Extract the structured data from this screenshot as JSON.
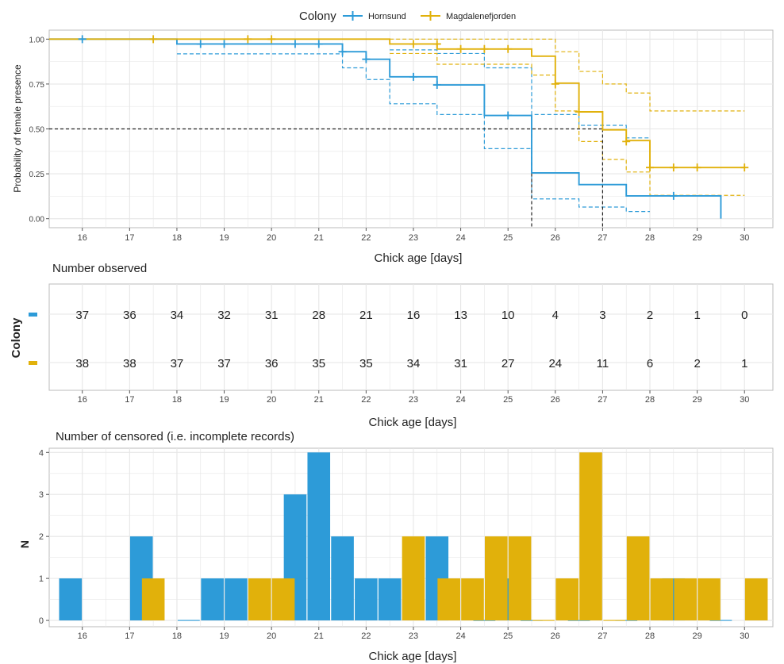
{
  "colors": {
    "hornsund": "#2D9BD8",
    "magdalenefjorden": "#E1B10B",
    "grid": "#E6E6E6",
    "axis": "#555555"
  },
  "legend": {
    "title": "Colony",
    "items": [
      "Hornsund",
      "Magdalenefjorden"
    ]
  },
  "panel1": {
    "ylabel": "Probability of female presence",
    "xlabel": "Chick age [days]"
  },
  "panel2": {
    "title": "Number observed",
    "ylabel": "Colony",
    "xlabel": "Chick age [days]"
  },
  "panel3": {
    "title": "Number of censored (i.e. incomplete records)",
    "ylabel": "N",
    "xlabel": "Chick age [days]"
  },
  "chart_data": [
    {
      "type": "line",
      "subtype": "kaplan-meier step curve with 95% confidence bands",
      "xlabel": "Chick age [days]",
      "ylabel": "Probability of female presence",
      "xlim": [
        15.3,
        30.6
      ],
      "ylim": [
        -0.05,
        1.05
      ],
      "x_ticks": [
        16,
        17,
        18,
        19,
        20,
        21,
        22,
        23,
        24,
        25,
        26,
        27,
        28,
        29,
        30
      ],
      "y_ticks": [
        "0.00",
        "0.25",
        "0.50",
        "0.75",
        "1.00"
      ],
      "grid": true,
      "legend_position": "top",
      "reference_lines": {
        "y": 0.5,
        "median_x": [
          25.5,
          27.0
        ]
      },
      "series": [
        {
          "name": "Hornsund",
          "steps": [
            [
              15.3,
              1.0
            ],
            [
              18.0,
              0.973
            ],
            [
              21.5,
              0.93
            ],
            [
              22.0,
              0.888
            ],
            [
              22.5,
              0.79
            ],
            [
              23.5,
              0.745
            ],
            [
              24.5,
              0.575
            ],
            [
              25.5,
              0.255
            ],
            [
              26.5,
              0.19
            ],
            [
              27.5,
              0.127
            ],
            [
              29.5,
              0.0
            ]
          ],
          "lower_band": [
            [
              18.0,
              0.918
            ],
            [
              21.5,
              0.84
            ],
            [
              22.0,
              0.775
            ],
            [
              22.5,
              0.64
            ],
            [
              23.5,
              0.58
            ],
            [
              24.5,
              0.39
            ],
            [
              25.5,
              0.11
            ],
            [
              26.5,
              0.065
            ],
            [
              27.5,
              0.04
            ],
            [
              28.0,
              0.04
            ]
          ],
          "upper_band": [
            [
              22.5,
              0.94
            ],
            [
              23.5,
              0.92
            ],
            [
              24.5,
              0.84
            ],
            [
              25.5,
              0.58
            ],
            [
              26.5,
              0.52
            ],
            [
              27.5,
              0.45
            ],
            [
              28.0,
              0.45
            ]
          ],
          "censor_marks": [
            [
              16.0,
              1.0
            ],
            [
              18.5,
              0.973
            ],
            [
              19.0,
              0.973
            ],
            [
              20.5,
              0.973
            ],
            [
              21.0,
              0.973
            ],
            [
              21.5,
              0.93
            ],
            [
              22.0,
              0.888
            ],
            [
              23.0,
              0.79
            ],
            [
              23.5,
              0.745
            ],
            [
              25.0,
              0.575
            ],
            [
              28.5,
              0.127
            ]
          ]
        },
        {
          "name": "Magdalenefjorden",
          "steps": [
            [
              15.3,
              1.0
            ],
            [
              22.5,
              0.973
            ],
            [
              23.5,
              0.945
            ],
            [
              25.5,
              0.905
            ],
            [
              26.0,
              0.755
            ],
            [
              26.5,
              0.595
            ],
            [
              27.0,
              0.495
            ],
            [
              27.5,
              0.435
            ],
            [
              28.0,
              0.285
            ],
            [
              30.0,
              0.285
            ]
          ],
          "lower_band": [
            [
              22.5,
              0.92
            ],
            [
              23.5,
              0.86
            ],
            [
              25.5,
              0.8
            ],
            [
              26.0,
              0.6
            ],
            [
              26.5,
              0.43
            ],
            [
              27.0,
              0.33
            ],
            [
              27.5,
              0.26
            ],
            [
              28.0,
              0.13
            ],
            [
              30.0,
              0.13
            ]
          ],
          "upper_band": [
            [
              22.5,
              1.0
            ],
            [
              25.5,
              1.0
            ],
            [
              26.0,
              0.93
            ],
            [
              26.5,
              0.82
            ],
            [
              27.0,
              0.75
            ],
            [
              27.5,
              0.7
            ],
            [
              28.0,
              0.6
            ],
            [
              30.0,
              0.6
            ]
          ],
          "censor_marks": [
            [
              17.5,
              1.0
            ],
            [
              19.5,
              1.0
            ],
            [
              20.0,
              1.0
            ],
            [
              23.0,
              0.973
            ],
            [
              23.5,
              0.973
            ],
            [
              24.0,
              0.945
            ],
            [
              24.5,
              0.945
            ],
            [
              25.0,
              0.945
            ],
            [
              26.0,
              0.75
            ],
            [
              26.5,
              0.595
            ],
            [
              27.5,
              0.43
            ],
            [
              28.0,
              0.285
            ],
            [
              28.5,
              0.285
            ],
            [
              29.0,
              0.285
            ],
            [
              30.0,
              0.285
            ]
          ]
        }
      ]
    },
    {
      "type": "table",
      "title": "Number observed",
      "xlabel": "Chick age [days]",
      "ylabel": "Colony",
      "columns": [
        16,
        17,
        18,
        19,
        20,
        21,
        22,
        23,
        24,
        25,
        26,
        27,
        28,
        29,
        30
      ],
      "rows": [
        {
          "name": "Hornsund",
          "values": [
            37,
            36,
            34,
            32,
            31,
            28,
            21,
            16,
            13,
            10,
            4,
            3,
            2,
            1,
            0
          ]
        },
        {
          "name": "Magdalenefjorden",
          "values": [
            38,
            38,
            37,
            37,
            36,
            35,
            35,
            34,
            31,
            27,
            24,
            11,
            6,
            2,
            1
          ]
        }
      ]
    },
    {
      "type": "bar",
      "title": "Number of censored (i.e. incomplete records)",
      "xlabel": "Chick age [days]",
      "ylabel": "N",
      "ylim": [
        -0.15,
        4.1
      ],
      "y_ticks": [
        0,
        1,
        2,
        3,
        4
      ],
      "bar_width": 0.5,
      "series": [
        {
          "name": "Hornsund",
          "bars": [
            [
              15.75,
              1
            ],
            [
              17.25,
              2
            ],
            [
              18.25,
              0
            ],
            [
              18.75,
              1
            ],
            [
              19.25,
              1
            ],
            [
              20.5,
              3
            ],
            [
              21.0,
              4
            ],
            [
              21.5,
              2
            ],
            [
              22.0,
              1
            ],
            [
              22.5,
              1
            ],
            [
              23.5,
              2
            ],
            [
              24.5,
              0
            ],
            [
              25.0,
              1
            ],
            [
              25.5,
              0
            ],
            [
              26.5,
              0
            ],
            [
              27.5,
              0
            ],
            [
              28.5,
              1
            ],
            [
              29.5,
              0
            ]
          ]
        },
        {
          "name": "Magdalenefjorden",
          "bars": [
            [
              17.5,
              1
            ],
            [
              19.75,
              1
            ],
            [
              20.25,
              1
            ],
            [
              23.0,
              2
            ],
            [
              23.75,
              1
            ],
            [
              24.25,
              1
            ],
            [
              24.75,
              2
            ],
            [
              25.25,
              2
            ],
            [
              25.75,
              0
            ],
            [
              26.25,
              1
            ],
            [
              26.75,
              4
            ],
            [
              27.25,
              0
            ],
            [
              27.75,
              2
            ],
            [
              28.25,
              1
            ],
            [
              28.75,
              1
            ],
            [
              29.25,
              1
            ],
            [
              30.25,
              1
            ]
          ]
        }
      ]
    }
  ]
}
